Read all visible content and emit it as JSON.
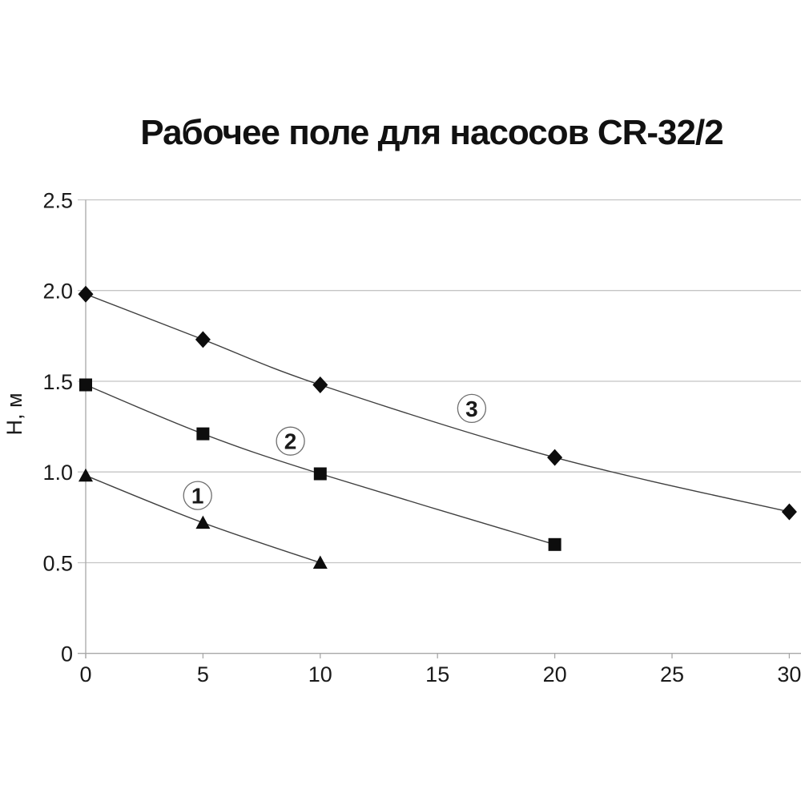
{
  "page": {
    "background": "#ffffff"
  },
  "chart_data": {
    "type": "line",
    "title": "Рабочее поле для насосов CR-32/2",
    "xlabel": "",
    "ylabel": "Н, м",
    "xlim": [
      0,
      30.5
    ],
    "ylim": [
      0,
      2.5
    ],
    "x_ticks": [
      0,
      5,
      10,
      15,
      20,
      25,
      30
    ],
    "x_tick_labels": [
      "0",
      "5",
      "10",
      "15",
      "20",
      "25",
      "30"
    ],
    "y_ticks": [
      0,
      0.5,
      1,
      1.5,
      2,
      2.5
    ],
    "y_tick_labels": [
      "0",
      "0.5",
      "1.0",
      "1.5",
      "2.0",
      "2.5"
    ],
    "grid": "horizontal-only",
    "legend": "none",
    "line_style": "smoothed",
    "colors": {
      "line": "#3f3f3f",
      "marker": "#0d0d0d",
      "grid": "#c4c4c4",
      "axis": "#a8a8a8",
      "text": "#1a1a1a",
      "title_text": "#111111",
      "label_circle_stroke": "#6e6e6e",
      "label_circle_fill": "#ffffff"
    },
    "series": [
      {
        "name": "1",
        "marker": "triangle",
        "x": [
          0,
          5,
          10
        ],
        "y": [
          0.98,
          0.72,
          0.5
        ],
        "label_pos": {
          "x": 4.77,
          "y": 0.87
        }
      },
      {
        "name": "2",
        "marker": "square",
        "x": [
          0,
          5,
          10,
          20
        ],
        "y": [
          1.48,
          1.21,
          0.99,
          0.6
        ],
        "label_pos": {
          "x": 8.73,
          "y": 1.17
        }
      },
      {
        "name": "3",
        "marker": "diamond",
        "x": [
          0,
          5,
          10,
          20,
          30
        ],
        "y": [
          1.98,
          1.73,
          1.48,
          1.08,
          0.78
        ],
        "label_pos": {
          "x": 16.46,
          "y": 1.35
        }
      }
    ]
  }
}
